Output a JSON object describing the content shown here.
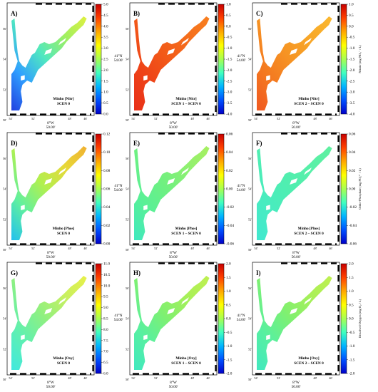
{
  "figure": {
    "axis_labels": {
      "y_tick_labels": [
        "56'",
        "54'",
        "52'",
        "50'"
      ],
      "x_tick_labels": [
        "54'",
        "52'",
        "48'",
        "46'"
      ],
      "lat_deg": "41°N",
      "lat_min": "54.00'",
      "lon_deg": "8°W",
      "lon_min": "50.00'"
    },
    "rows": [
      {
        "cbar": {
          "left": {
            "colors": [
              "#0000c8",
              "#0050ff",
              "#00b4ff",
              "#40ffc0",
              "#a8ff50",
              "#ffff00",
              "#ffa800",
              "#ff4000",
              "#c80000"
            ],
            "ticks": [
              "0.0",
              "0.5",
              "1.0",
              "1.5",
              "2.0",
              "2.5",
              "3.0",
              "3.5",
              "4.0",
              "4.5",
              "5.0"
            ]
          },
          "right": {
            "colors": [
              "#0000c8",
              "#0050ff",
              "#00b4ff",
              "#40ffc0",
              "#a8ff50",
              "#ffff00",
              "#ffa800",
              "#ff4000",
              "#c80000"
            ],
            "ticks": [
              "-4.0",
              "-3.5",
              "-3.0",
              "-2.5",
              "-2.0",
              "-1.5",
              "-1.0",
              "-0.5",
              "0.0",
              "0.5",
              "1.0"
            ],
            "unit_label": "Nitrate (mg NO₃⁻ / L)"
          }
        },
        "panels": [
          {
            "letter": "A)",
            "title1": "Minho [Nitr]",
            "title2": "SCEN 0",
            "colors": [
              "#2040e0",
              "#30a0ff",
              "#50e8c0",
              "#a0f060",
              "#e0f040"
            ]
          },
          {
            "letter": "B)",
            "title1": "Minho [Nitr]",
            "title2": "SCEN 1 – SCEN 0",
            "colors": [
              "#e83018",
              "#ee4218",
              "#f25a18",
              "#f56e1c",
              "#f88020"
            ]
          },
          {
            "letter": "C)",
            "title1": "Minho [Nitr]",
            "title2": "SCEN 2 – SCEN 0",
            "colors": [
              "#f05820",
              "#f47820",
              "#f69424",
              "#f8a828",
              "#fab830"
            ]
          }
        ]
      },
      {
        "cbar": {
          "left": {
            "colors": [
              "#0000c8",
              "#0050ff",
              "#00b4ff",
              "#40ffc0",
              "#a8ff50",
              "#ffff00",
              "#ffa800",
              "#ff4000",
              "#c80000"
            ],
            "ticks": [
              "0.00",
              "0.02",
              "0.04",
              "0.06",
              "0.08",
              "0.10",
              "0.12"
            ]
          },
          "right": {
            "colors": [
              "#0000c8",
              "#0050ff",
              "#00b4ff",
              "#40ffc0",
              "#a8ff50",
              "#ffff00",
              "#ffa800",
              "#ff4000",
              "#c80000"
            ],
            "ticks": [
              "-0.06",
              "-0.04",
              "-0.02",
              "0.00",
              "0.02",
              "0.04",
              "0.06"
            ],
            "unit_label": "Ortho-Phosphate (mg PO₄³⁻ / L)"
          }
        },
        "panels": [
          {
            "letter": "D)",
            "title1": "Minho [Phos]",
            "title2": "SCEN 0",
            "colors": [
              "#20c0f0",
              "#60f0a0",
              "#b0f050",
              "#e8d838",
              "#f0b030"
            ]
          },
          {
            "letter": "E)",
            "title1": "Minho [Phos]",
            "title2": "SCEN 1 – SCEN 0",
            "colors": [
              "#40e8c0",
              "#58f098",
              "#70f080",
              "#90f070",
              "#a8f060"
            ]
          },
          {
            "letter": "F)",
            "title1": "Minho [Phos]",
            "title2": "SCEN 2 – SCEN 0",
            "colors": [
              "#40e8d0",
              "#48ecc0",
              "#50eeb0",
              "#58f0a8",
              "#60f0a0"
            ]
          }
        ]
      },
      {
        "cbar": {
          "left": {
            "colors": [
              "#0000c8",
              "#0050ff",
              "#00b4ff",
              "#40ffc0",
              "#a8ff50",
              "#ffff00",
              "#ffa800",
              "#ff4000",
              "#c80000"
            ],
            "ticks": [
              "6.0",
              "6.5",
              "7.0",
              "7.5",
              "8.0",
              "8.5",
              "9.0",
              "9.5",
              "10.0",
              "10.5",
              "11.0"
            ]
          },
          "right": {
            "colors": [
              "#0000c8",
              "#0050ff",
              "#00b4ff",
              "#40ffc0",
              "#a8ff50",
              "#ffff00",
              "#ffa800",
              "#ff4000",
              "#c80000"
            ],
            "ticks": [
              "-2.0",
              "-1.5",
              "-1.0",
              "-0.5",
              "0.0",
              "0.5",
              "1.0",
              "1.5",
              "2.0"
            ],
            "unit_label": "Dissolved Oxygen (mg O₂ / L)"
          }
        },
        "panels": [
          {
            "letter": "G)",
            "title1": "Minho [Oxy]",
            "title2": "SCEN 0",
            "colors": [
              "#40e8e0",
              "#60f0b0",
              "#90f080",
              "#c8f060",
              "#e8f048"
            ]
          },
          {
            "letter": "H)",
            "title1": "Minho [Oxy]",
            "title2": "SCEN 1 – SCEN 0",
            "colors": [
              "#40e8c0",
              "#58f0a0",
              "#80f070",
              "#a8f058",
              "#c0f050"
            ]
          },
          {
            "letter": "I)",
            "title1": "Minho [Oxy]",
            "title2": "SCEN 2 – SCEN 0",
            "colors": [
              "#40e8c0",
              "#58f0a0",
              "#80f070",
              "#a8f058",
              "#c0f050"
            ]
          }
        ]
      }
    ]
  }
}
